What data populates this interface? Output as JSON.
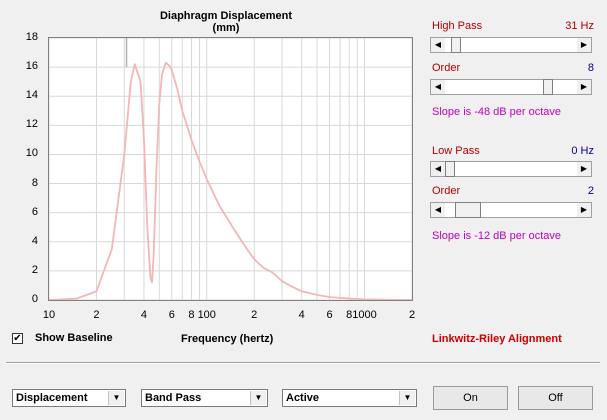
{
  "chart": {
    "title": "Diaphragm Displacement (mm)",
    "xlabel": "Frequency (hertz)",
    "yticks": [
      "18",
      "16",
      "14",
      "12",
      "10",
      "8",
      "6",
      "4",
      "2",
      "0"
    ],
    "xticks": [
      {
        "label": "10",
        "f": 10
      },
      {
        "label": "2",
        "f": 20
      },
      {
        "label": "4",
        "f": 40
      },
      {
        "label": "6",
        "f": 60
      },
      {
        "label": "8",
        "f": 80
      },
      {
        "label": "100",
        "f": 100
      },
      {
        "label": "2",
        "f": 200
      },
      {
        "label": "4",
        "f": 400
      },
      {
        "label": "6",
        "f": 600
      },
      {
        "label": "8",
        "f": 800
      },
      {
        "label": "1000",
        "f": 1000
      },
      {
        "label": "2",
        "f": 2000
      }
    ],
    "curve_color": "#f4b6b6",
    "baseline_color": "#b0b0b0"
  },
  "chart_data": {
    "type": "line",
    "xscale": "log",
    "xlim": [
      10,
      2000
    ],
    "ylim": [
      0,
      18
    ],
    "title": "Diaphragm Displacement (mm)",
    "xlabel": "Frequency (hertz)",
    "ylabel": "",
    "grid": true,
    "series": [
      {
        "x": [
          10,
          15,
          20,
          25,
          30,
          33,
          35,
          38,
          40,
          42,
          44,
          45,
          46,
          48,
          50,
          52,
          55,
          58,
          60,
          65,
          70,
          80,
          90,
          100,
          120,
          150,
          170,
          180,
          200,
          230,
          260,
          280,
          300,
          350,
          400,
          500,
          600,
          800,
          1000,
          1300,
          1600,
          2000
        ],
        "y": [
          0,
          0.1,
          0.6,
          3.5,
          10,
          15,
          16.2,
          15,
          11,
          5,
          1.5,
          1.2,
          3,
          9,
          13.5,
          15.5,
          16.3,
          16.1,
          15.8,
          14.5,
          13,
          11,
          9.5,
          8.3,
          6.5,
          4.8,
          3.9,
          3.5,
          2.8,
          2.2,
          1.9,
          1.6,
          1.3,
          0.9,
          0.6,
          0.35,
          0.2,
          0.1,
          0.05,
          0.02,
          0.01,
          0
        ]
      }
    ]
  },
  "highpass": {
    "label": "High Pass",
    "value": "31 Hz",
    "order_label": "Order",
    "order_value": "8",
    "slope": "Slope is -48 dB per octave"
  },
  "lowpass": {
    "label": "Low Pass",
    "value": "0 Hz",
    "order_label": "Order",
    "order_value": "2",
    "slope": "Slope is -12 dB per octave"
  },
  "show_baseline": {
    "label": "Show Baseline",
    "checked": true,
    "mark": "✔"
  },
  "alignment": "Linkwitz-Riley Alignment",
  "dropdowns": {
    "mode": "Displacement",
    "filter": "Band Pass",
    "type": "Active"
  },
  "buttons": {
    "on": "On",
    "off": "Off"
  },
  "icons": {
    "left": "◀",
    "right": "▶",
    "down": "▼"
  }
}
